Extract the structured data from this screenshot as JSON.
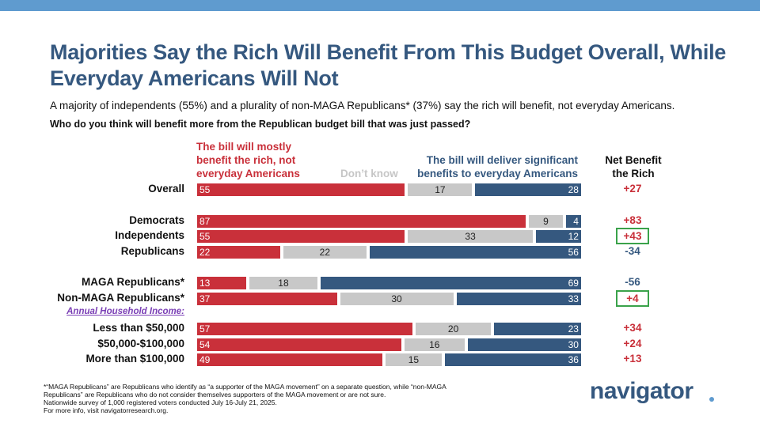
{
  "header": {
    "title": "Majorities Say the Rich Will Benefit From This Budget Overall, While Everyday Americans Will Not",
    "subtitle": "A majority of independents (55%) and a plurality of non-MAGA Republicans* (37%) say the rich will benefit, not everyday Americans.",
    "question": "Who do you think will benefit more from the Republican budget bill that was just passed?"
  },
  "column_headers": {
    "rich_lines": [
      "The bill will mostly",
      "benefit the rich, not",
      "everyday Americans"
    ],
    "dont_know": "Don’t know",
    "everyday_lines": [
      "The bill will deliver significant",
      "benefits to everyday Americans"
    ],
    "net_lines": [
      "Net Benefit",
      "the Rich"
    ]
  },
  "colors": {
    "rich": "#c9303a",
    "dont_know": "#c8c8c8",
    "everyday": "#35587f",
    "highlight_box": "#3aa24a",
    "top_bar": "#5f9bcf"
  },
  "chart_data": {
    "type": "bar",
    "orientation": "horizontal-stacked-100",
    "categories": [
      "Overall",
      "Democrats",
      "Independents",
      "Republicans",
      "MAGA Republicans*",
      "Non-MAGA Republicans*",
      "Less than $50,000",
      "$50,000-$100,000",
      "More than $100,000"
    ],
    "series": [
      {
        "name": "The bill will mostly benefit the rich, not everyday Americans",
        "values": [
          55,
          87,
          55,
          22,
          13,
          37,
          57,
          54,
          49
        ]
      },
      {
        "name": "Don’t know",
        "values": [
          17,
          9,
          33,
          22,
          18,
          30,
          20,
          16,
          15
        ]
      },
      {
        "name": "The bill will deliver significant benefits to everyday Americans",
        "values": [
          28,
          4,
          12,
          56,
          69,
          33,
          23,
          30,
          36
        ]
      }
    ],
    "net_benefit_rich": [
      "+27",
      "+83",
      "+43",
      "-34",
      "-56",
      "+4",
      "+34",
      "+24",
      "+13"
    ],
    "highlighted_net": [
      "Independents",
      "Non-MAGA Republicans*"
    ],
    "group_label": "Annual Household Income:",
    "xlim": [
      0,
      100
    ]
  },
  "footnote": {
    "lines": [
      "*“MAGA Republicans” are Republicans who identify as “a supporter of the MAGA movement” on a separate question, while “non-MAGA Republicans” are Republicans who do not consider themselves supporters of the MAGA movement or are not sure.",
      "Nationwide survey of 1,000 registered voters conducted July 16-July 21, 2025.",
      "For more info, visit navigatorresearch.org."
    ]
  },
  "logo": {
    "text": "navigator"
  }
}
